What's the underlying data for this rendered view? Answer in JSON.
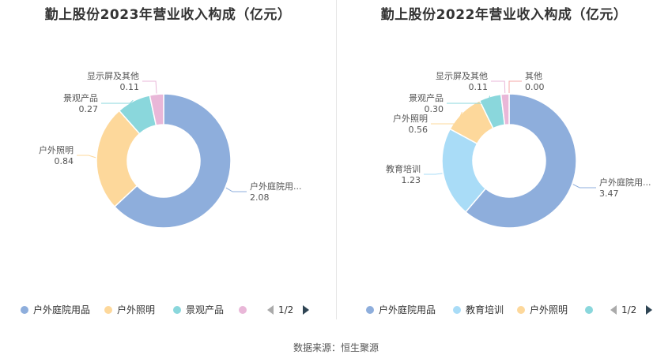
{
  "source_label": "数据来源：恒生聚源",
  "pager_text": "1/2",
  "chart_data": [
    {
      "type": "pie",
      "title": "勤上股份2023年营业收入构成（亿元）",
      "slices": [
        {
          "name": "户外庭院用品",
          "label": "户外庭院用...",
          "value": 2.08,
          "value_text": "2.08",
          "color": "#8eaedc"
        },
        {
          "name": "户外照明",
          "label": "户外照明",
          "value": 0.84,
          "value_text": "0.84",
          "color": "#fdd89b"
        },
        {
          "name": "景观产品",
          "label": "景观产品",
          "value": 0.27,
          "value_text": "0.27",
          "color": "#8ad7dc"
        },
        {
          "name": "显示屏及其他",
          "label": "显示屏及其他",
          "value": 0.11,
          "value_text": "0.11",
          "color": "#e9b7d8"
        }
      ],
      "legend": [
        "户外庭院用品",
        "户外照明",
        "景观产品",
        ""
      ]
    },
    {
      "type": "pie",
      "title": "勤上股份2022年营业收入构成（亿元）",
      "slices": [
        {
          "name": "户外庭院用品",
          "label": "户外庭院用...",
          "value": 3.47,
          "value_text": "3.47",
          "color": "#8eaedc"
        },
        {
          "name": "教育培训",
          "label": "教育培训",
          "value": 1.23,
          "value_text": "1.23",
          "color": "#a9dcf7"
        },
        {
          "name": "户外照明",
          "label": "户外照明",
          "value": 0.56,
          "value_text": "0.56",
          "color": "#fdd89b"
        },
        {
          "name": "景观产品",
          "label": "景观产品",
          "value": 0.3,
          "value_text": "0.30",
          "color": "#8ad7dc"
        },
        {
          "name": "显示屏及其他",
          "label": "显示屏及其他",
          "value": 0.11,
          "value_text": "0.11",
          "color": "#e9b7d8"
        },
        {
          "name": "其他",
          "label": "其他",
          "value": 0.0,
          "value_text": "0.00",
          "color": "#f4a7a7"
        }
      ],
      "legend": [
        "户外庭院用品",
        "教育培训",
        "户外照明",
        ""
      ]
    }
  ]
}
